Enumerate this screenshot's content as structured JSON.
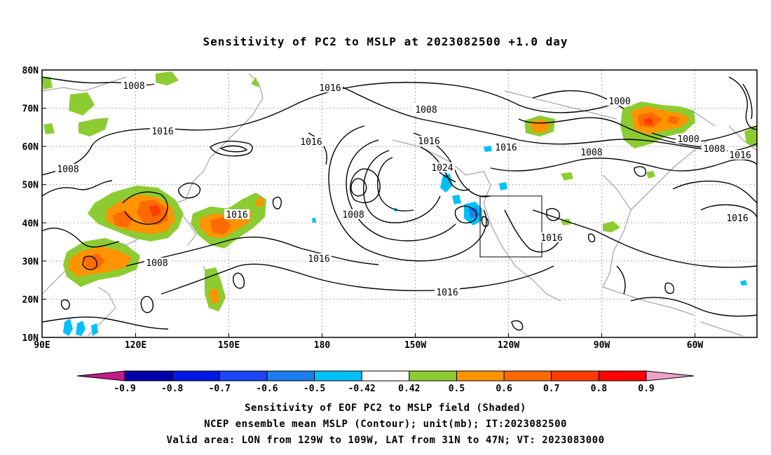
{
  "title": "Sensitivity of PC2 to MSLP at 2023082500 +1.0 day",
  "map": {
    "lon_labels": [
      "90E",
      "120E",
      "150E",
      "180",
      "150W",
      "120W",
      "90W",
      "60W"
    ],
    "lat_labels": [
      "80N",
      "70N",
      "60N",
      "50N",
      "40N",
      "30N",
      "20N",
      "10N"
    ],
    "contour_labels": [
      {
        "text": "1008"
      },
      {
        "text": "1016"
      },
      {
        "text": "1016"
      },
      {
        "text": "1008"
      },
      {
        "text": "1016"
      },
      {
        "text": "1008"
      },
      {
        "text": "1016"
      },
      {
        "text": "1024"
      },
      {
        "text": "1008"
      },
      {
        "text": "1016"
      },
      {
        "text": "1016"
      },
      {
        "text": "1008"
      },
      {
        "text": "1016"
      },
      {
        "text": "1016"
      },
      {
        "text": "1008"
      },
      {
        "text": "1016"
      },
      {
        "text": "1000"
      },
      {
        "text": "1000"
      },
      {
        "text": "1008"
      },
      {
        "text": "1016"
      },
      {
        "text": "1016"
      }
    ],
    "valid_area_box": {
      "lon_from": "129W",
      "lon_to": "109W",
      "lat_from": "31N",
      "lat_to": "47N"
    }
  },
  "colorbar": {
    "labels": [
      "-0.9",
      "-0.8",
      "-0.7",
      "-0.6",
      "-0.5",
      "-0.42",
      "0.42",
      "0.5",
      "0.6",
      "0.7",
      "0.8",
      "0.9"
    ],
    "colors": [
      "#0000a8",
      "#0018e0",
      "#1a46f5",
      "#1a7ef0",
      "#00c0f8",
      "#ffffff",
      "#8ccc32",
      "#ff9400",
      "#ff6a00",
      "#ff3c00",
      "#ff0000"
    ],
    "low_end_color": "#c01a8c",
    "high_end_color": "#f0a0c8"
  },
  "captions": [
    "Sensitivity of EOF PC2 to MSLP field (Shaded)",
    "NCEP ensemble mean MSLP (Contour); unit(mb); IT:2023082500",
    "Valid area: LON from 129W to 109W, LAT from 31N to 47N; VT: 2023083000"
  ]
}
